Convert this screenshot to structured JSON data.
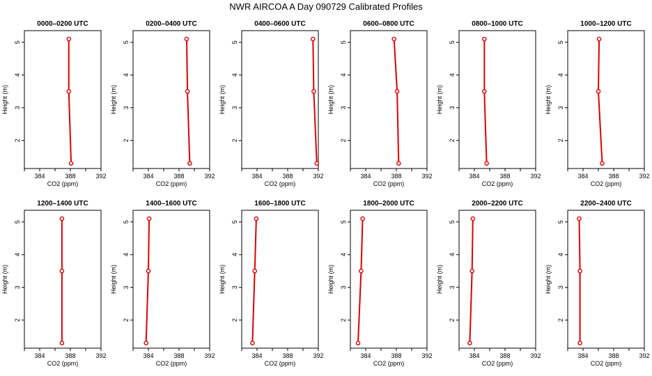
{
  "figure": {
    "title": "NWR AIRCOA A  Day 090729  Calibrated Profiles"
  },
  "colors": {
    "series": "#dd0000",
    "axis": "#000000",
    "background": "#ffffff"
  },
  "chart_data": [
    {
      "type": "line",
      "title": "0000–0200 UTC",
      "xlabel": "CO2 (ppm)",
      "ylabel": "Height (m)",
      "xlim": [
        382,
        392
      ],
      "ylim": [
        1.25,
        5.25
      ],
      "xticks": [
        384,
        388,
        392
      ],
      "yticks": [
        2,
        3,
        4,
        5
      ],
      "grid": false,
      "points": [
        {
          "x": 387.8,
          "y": 5.1
        },
        {
          "x": 387.8,
          "y": 3.5
        },
        {
          "x": 388.1,
          "y": 1.3
        }
      ]
    },
    {
      "type": "line",
      "title": "0200–0400 UTC",
      "xlabel": "CO2 (ppm)",
      "ylabel": "Height (m)",
      "xlim": [
        382,
        392
      ],
      "ylim": [
        1.25,
        5.25
      ],
      "xticks": [
        384,
        388,
        392
      ],
      "yticks": [
        2,
        3,
        4,
        5
      ],
      "grid": false,
      "points": [
        {
          "x": 389.0,
          "y": 5.1
        },
        {
          "x": 389.1,
          "y": 3.5
        },
        {
          "x": 389.4,
          "y": 1.3
        }
      ]
    },
    {
      "type": "line",
      "title": "0400–0600 UTC",
      "xlabel": "CO2 (ppm)",
      "ylabel": "Height (m)",
      "xlim": [
        382,
        392
      ],
      "ylim": [
        1.25,
        5.25
      ],
      "xticks": [
        384,
        388,
        392
      ],
      "yticks": [
        2,
        3,
        4,
        5
      ],
      "grid": false,
      "points": [
        {
          "x": 391.3,
          "y": 5.1
        },
        {
          "x": 391.4,
          "y": 3.5
        },
        {
          "x": 391.8,
          "y": 1.3
        }
      ]
    },
    {
      "type": "line",
      "title": "0600–0800 UTC",
      "xlabel": "CO2 (ppm)",
      "ylabel": "Height (m)",
      "xlim": [
        382,
        392
      ],
      "ylim": [
        1.25,
        5.25
      ],
      "xticks": [
        384,
        388,
        392
      ],
      "yticks": [
        2,
        3,
        4,
        5
      ],
      "grid": false,
      "points": [
        {
          "x": 387.7,
          "y": 5.1
        },
        {
          "x": 388.1,
          "y": 3.5
        },
        {
          "x": 388.3,
          "y": 1.3
        }
      ]
    },
    {
      "type": "line",
      "title": "0800–1000 UTC",
      "xlabel": "CO2 (ppm)",
      "ylabel": "Height (m)",
      "xlim": [
        382,
        392
      ],
      "ylim": [
        1.25,
        5.25
      ],
      "xticks": [
        384,
        388,
        392
      ],
      "yticks": [
        2,
        3,
        4,
        5
      ],
      "grid": false,
      "points": [
        {
          "x": 385.3,
          "y": 5.1
        },
        {
          "x": 385.3,
          "y": 3.5
        },
        {
          "x": 385.6,
          "y": 1.3
        }
      ]
    },
    {
      "type": "line",
      "title": "1000–1200 UTC",
      "xlabel": "CO2 (ppm)",
      "ylabel": "Height (m)",
      "xlim": [
        382,
        392
      ],
      "ylim": [
        1.25,
        5.25
      ],
      "xticks": [
        384,
        388,
        392
      ],
      "yticks": [
        2,
        3,
        4,
        5
      ],
      "grid": false,
      "points": [
        {
          "x": 386.1,
          "y": 5.1
        },
        {
          "x": 386.0,
          "y": 3.5
        },
        {
          "x": 386.5,
          "y": 1.3
        }
      ]
    },
    {
      "type": "line",
      "title": "1200–1400 UTC",
      "xlabel": "CO2 (ppm)",
      "ylabel": "Height (m)",
      "xlim": [
        382,
        392
      ],
      "ylim": [
        1.25,
        5.25
      ],
      "xticks": [
        384,
        388,
        392
      ],
      "yticks": [
        2,
        3,
        4,
        5
      ],
      "grid": false,
      "points": [
        {
          "x": 386.9,
          "y": 5.1
        },
        {
          "x": 386.9,
          "y": 3.5
        },
        {
          "x": 386.9,
          "y": 1.3
        }
      ]
    },
    {
      "type": "line",
      "title": "1400–1600 UTC",
      "xlabel": "CO2 (ppm)",
      "ylabel": "Height (m)",
      "xlim": [
        382,
        392
      ],
      "ylim": [
        1.25,
        5.25
      ],
      "xticks": [
        384,
        388,
        392
      ],
      "yticks": [
        2,
        3,
        4,
        5
      ],
      "grid": false,
      "points": [
        {
          "x": 384.1,
          "y": 5.1
        },
        {
          "x": 384.0,
          "y": 3.5
        },
        {
          "x": 383.7,
          "y": 1.3
        }
      ]
    },
    {
      "type": "line",
      "title": "1600–1800 UTC",
      "xlabel": "CO2 (ppm)",
      "ylabel": "Height (m)",
      "xlim": [
        382,
        392
      ],
      "ylim": [
        1.25,
        5.25
      ],
      "xticks": [
        384,
        388,
        392
      ],
      "yticks": [
        2,
        3,
        4,
        5
      ],
      "grid": false,
      "points": [
        {
          "x": 383.9,
          "y": 5.1
        },
        {
          "x": 383.7,
          "y": 3.5
        },
        {
          "x": 383.4,
          "y": 1.3
        }
      ]
    },
    {
      "type": "line",
      "title": "1800–2000 UTC",
      "xlabel": "CO2 (ppm)",
      "ylabel": "Height (m)",
      "xlim": [
        382,
        392
      ],
      "ylim": [
        1.25,
        5.25
      ],
      "xticks": [
        384,
        388,
        392
      ],
      "yticks": [
        2,
        3,
        4,
        5
      ],
      "grid": false,
      "points": [
        {
          "x": 383.6,
          "y": 5.1
        },
        {
          "x": 383.4,
          "y": 3.5
        },
        {
          "x": 383.0,
          "y": 1.3
        }
      ]
    },
    {
      "type": "line",
      "title": "2000–2200 UTC",
      "xlabel": "CO2 (ppm)",
      "ylabel": "Height (m)",
      "xlim": [
        382,
        392
      ],
      "ylim": [
        1.25,
        5.25
      ],
      "xticks": [
        384,
        388,
        392
      ],
      "yticks": [
        2,
        3,
        4,
        5
      ],
      "grid": false,
      "points": [
        {
          "x": 383.8,
          "y": 5.1
        },
        {
          "x": 383.7,
          "y": 3.5
        },
        {
          "x": 383.4,
          "y": 1.3
        }
      ]
    },
    {
      "type": "line",
      "title": "2200–2400 UTC",
      "xlabel": "CO2 (ppm)",
      "ylabel": "Height (m)",
      "xlim": [
        382,
        392
      ],
      "ylim": [
        1.25,
        5.25
      ],
      "xticks": [
        384,
        388,
        392
      ],
      "yticks": [
        2,
        3,
        4,
        5
      ],
      "grid": false,
      "points": [
        {
          "x": 383.5,
          "y": 5.1
        },
        {
          "x": 383.6,
          "y": 3.5
        },
        {
          "x": 383.6,
          "y": 1.3
        }
      ]
    }
  ]
}
